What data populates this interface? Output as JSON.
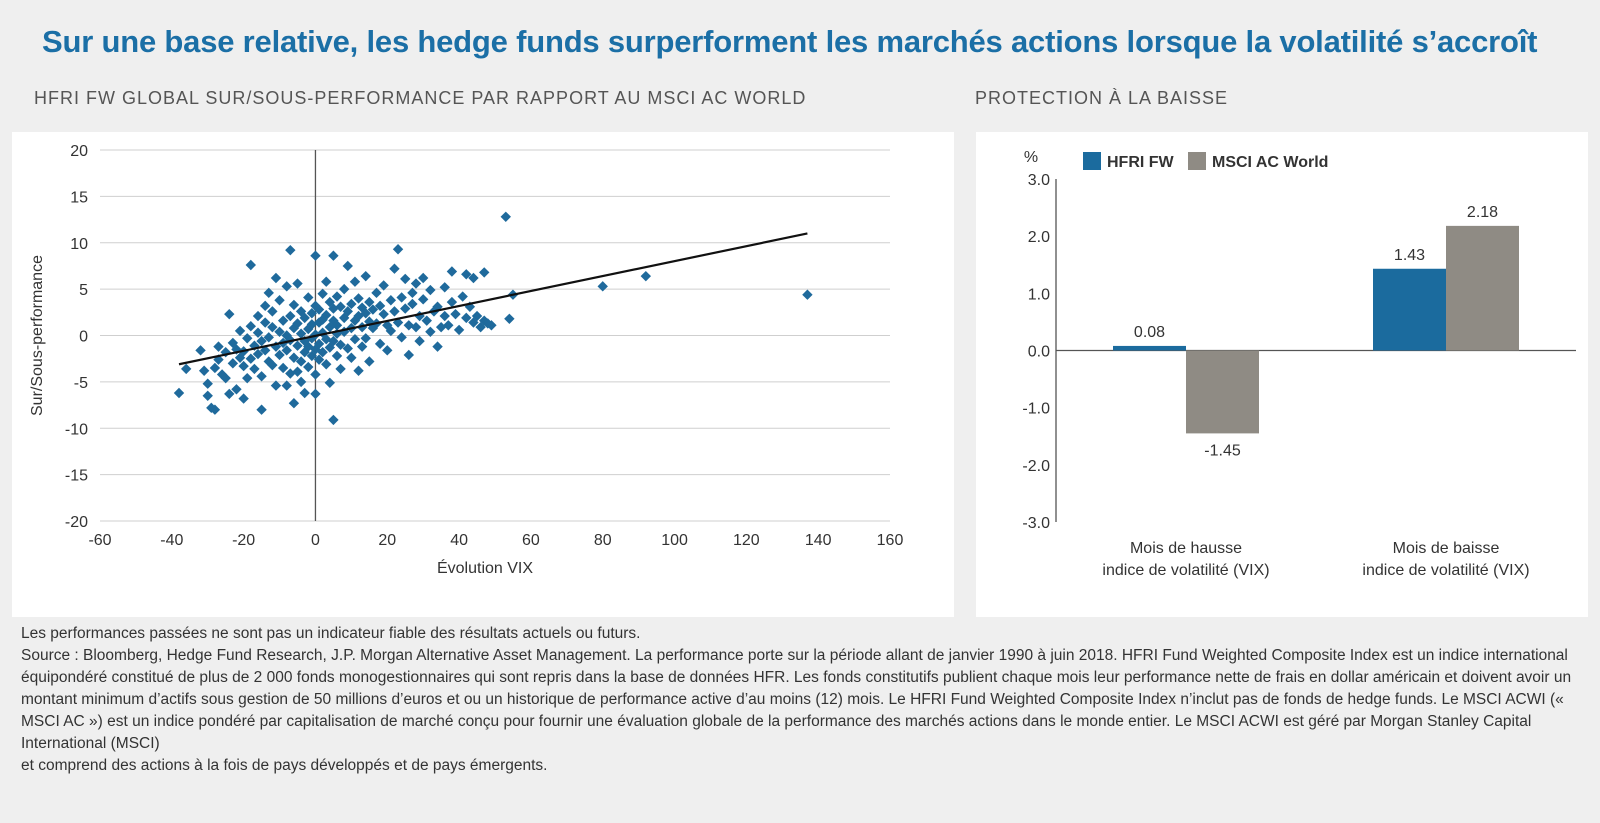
{
  "title": "Sur une base relative, les hedge funds surperforment les marchés actions lorsque la volatilité s’accroît",
  "colors": {
    "title": "#1b6fa6",
    "hfri": "#1b6b9e",
    "msci": "#8f8b84",
    "scatter": "#1f6a9c"
  },
  "chart_data": [
    {
      "type": "scatter",
      "title": "HFRI FW GLOBAL SUR/SOUS-PERFORMANCE PAR RAPPORT AU MSCI AC WORLD",
      "xlabel": "Évolution VIX",
      "ylabel": "Sur/Sous-performance",
      "xlim": [
        -60,
        160
      ],
      "ylim": [
        -20,
        20
      ],
      "xticks": [
        -60,
        -40,
        -20,
        0,
        20,
        40,
        60,
        80,
        100,
        120,
        140,
        160
      ],
      "yticks": [
        20,
        15,
        10,
        5,
        0,
        -5,
        -10,
        -15,
        -20
      ],
      "grid": true,
      "trendline": {
        "x": [
          -38,
          137
        ],
        "y": [
          -3.1,
          11
        ]
      },
      "points": [
        [
          -38,
          -6.2
        ],
        [
          -36,
          -3.6
        ],
        [
          -32,
          -1.6
        ],
        [
          -31,
          -3.8
        ],
        [
          -30,
          -5.2
        ],
        [
          -30,
          -6.5
        ],
        [
          -29,
          -7.8
        ],
        [
          -28,
          -8
        ],
        [
          -28,
          -3.5
        ],
        [
          -27,
          -2.6
        ],
        [
          -27,
          -1.2
        ],
        [
          -26,
          -4.2
        ],
        [
          -25,
          -4.6
        ],
        [
          -25,
          -1.8
        ],
        [
          -24,
          -6.3
        ],
        [
          -24,
          2.3
        ],
        [
          -23,
          -3
        ],
        [
          -23,
          -0.8
        ],
        [
          -22,
          -5.8
        ],
        [
          -22,
          -1.5
        ],
        [
          -21,
          -2.4
        ],
        [
          -21,
          0.5
        ],
        [
          -20,
          -3.3
        ],
        [
          -20,
          -1.7
        ],
        [
          -20,
          -6.8
        ],
        [
          -19,
          -0.3
        ],
        [
          -19,
          -4.6
        ],
        [
          -18,
          7.6
        ],
        [
          -18,
          -2.5
        ],
        [
          -18,
          1
        ],
        [
          -17,
          -1.1
        ],
        [
          -17,
          -3.6
        ],
        [
          -16,
          0.3
        ],
        [
          -16,
          -2
        ],
        [
          -16,
          2.1
        ],
        [
          -15,
          -4.4
        ],
        [
          -15,
          -0.6
        ],
        [
          -15,
          -8
        ],
        [
          -14,
          1.4
        ],
        [
          -14,
          -1.6
        ],
        [
          -14,
          3.2
        ],
        [
          -13,
          -2.8
        ],
        [
          -13,
          -0.2
        ],
        [
          -13,
          4.6
        ],
        [
          -12,
          0.9
        ],
        [
          -12,
          -3.2
        ],
        [
          -12,
          2.6
        ],
        [
          -11,
          -1.2
        ],
        [
          -11,
          6.2
        ],
        [
          -11,
          -5.4
        ],
        [
          -10,
          0.4
        ],
        [
          -10,
          -2.1
        ],
        [
          -10,
          3.8
        ],
        [
          -9,
          -0.8
        ],
        [
          -9,
          1.6
        ],
        [
          -9,
          -3.5
        ],
        [
          -8,
          -5.4
        ],
        [
          -8,
          5.3
        ],
        [
          -8,
          0
        ],
        [
          -8,
          -1.6
        ],
        [
          -7,
          2.1
        ],
        [
          -7,
          -4.1
        ],
        [
          -7,
          -0.5
        ],
        [
          -7,
          9.2
        ],
        [
          -6,
          0.8
        ],
        [
          -6,
          -2.4
        ],
        [
          -6,
          3.3
        ],
        [
          -6,
          -7.3
        ],
        [
          -5,
          -1.1
        ],
        [
          -5,
          1.3
        ],
        [
          -5,
          -3.9
        ],
        [
          -5,
          5.6
        ],
        [
          -4,
          0.2
        ],
        [
          -4,
          -2.8
        ],
        [
          -4,
          2.6
        ],
        [
          -4,
          -5
        ],
        [
          -3,
          -0.6
        ],
        [
          -3,
          1.9
        ],
        [
          -3,
          -1.8
        ],
        [
          -3,
          -6.2
        ],
        [
          -2,
          0.7
        ],
        [
          -2,
          -3.4
        ],
        [
          -2,
          4.1
        ],
        [
          -2,
          -1.2
        ],
        [
          -1,
          2.4
        ],
        [
          -1,
          -0.3
        ],
        [
          -1,
          -2.2
        ],
        [
          -1,
          1.2
        ],
        [
          0,
          0.1
        ],
        [
          0,
          -1.5
        ],
        [
          0,
          3.2
        ],
        [
          0,
          -4.2
        ],
        [
          0,
          -6.3
        ],
        [
          0,
          8.6
        ],
        [
          1,
          1.4
        ],
        [
          1,
          -0.9
        ],
        [
          1,
          2.8
        ],
        [
          1,
          -2.6
        ],
        [
          2,
          0.3
        ],
        [
          2,
          -1.8
        ],
        [
          2,
          4.5
        ],
        [
          2,
          1.7
        ],
        [
          3,
          -0.4
        ],
        [
          3,
          2.2
        ],
        [
          3,
          -3.1
        ],
        [
          3,
          5.8
        ],
        [
          4,
          0.9
        ],
        [
          4,
          -1.3
        ],
        [
          4,
          3.6
        ],
        [
          4,
          -5.1
        ],
        [
          5,
          1.6
        ],
        [
          5,
          -0.6
        ],
        [
          5,
          2.9
        ],
        [
          5,
          -9.1
        ],
        [
          5,
          8.6
        ],
        [
          6,
          0.2
        ],
        [
          6,
          -2.2
        ],
        [
          6,
          4.2
        ],
        [
          6,
          1.1
        ],
        [
          7,
          -1
        ],
        [
          7,
          3.1
        ],
        [
          7,
          -3.6
        ],
        [
          8,
          1.9
        ],
        [
          8,
          0.4
        ],
        [
          8,
          5
        ],
        [
          9,
          -1.4
        ],
        [
          9,
          2.6
        ],
        [
          9,
          7.5
        ],
        [
          10,
          0.8
        ],
        [
          10,
          3.4
        ],
        [
          10,
          -2.4
        ],
        [
          11,
          1.6
        ],
        [
          11,
          5.8
        ],
        [
          11,
          -0.4
        ],
        [
          12,
          2.1
        ],
        [
          12,
          -3.8
        ],
        [
          12,
          4
        ],
        [
          13,
          0.9
        ],
        [
          13,
          3
        ],
        [
          13,
          -1.2
        ],
        [
          14,
          2.4
        ],
        [
          14,
          6.4
        ],
        [
          14,
          -0.3
        ],
        [
          15,
          1.5
        ],
        [
          15,
          3.6
        ],
        [
          15,
          -2.8
        ],
        [
          16,
          2.8
        ],
        [
          16,
          0.8
        ],
        [
          17,
          4.6
        ],
        [
          17,
          1.3
        ],
        [
          18,
          -0.9
        ],
        [
          18,
          3.2
        ],
        [
          19,
          2.3
        ],
        [
          19,
          5.4
        ],
        [
          20,
          1.1
        ],
        [
          20,
          -1.6
        ],
        [
          21,
          3.8
        ],
        [
          21,
          0.5
        ],
        [
          22,
          2.6
        ],
        [
          22,
          7.2
        ],
        [
          23,
          1.4
        ],
        [
          23,
          9.3
        ],
        [
          24,
          4.1
        ],
        [
          24,
          -0.2
        ],
        [
          25,
          2.9
        ],
        [
          25,
          6.1
        ],
        [
          26,
          1.1
        ],
        [
          26,
          -2.1
        ],
        [
          27,
          3.4
        ],
        [
          27,
          4.6
        ],
        [
          28,
          0.9
        ],
        [
          28,
          5.6
        ],
        [
          29,
          2.1
        ],
        [
          29,
          -0.6
        ],
        [
          30,
          3.9
        ],
        [
          30,
          6.2
        ],
        [
          31,
          1.6
        ],
        [
          32,
          0.4
        ],
        [
          32,
          4.9
        ],
        [
          33,
          2.6
        ],
        [
          34,
          -1.2
        ],
        [
          34,
          3.1
        ],
        [
          35,
          0.9
        ],
        [
          36,
          5.2
        ],
        [
          36,
          2.1
        ],
        [
          37,
          1.1
        ],
        [
          38,
          3.6
        ],
        [
          38,
          6.9
        ],
        [
          39,
          2.3
        ],
        [
          40,
          0.6
        ],
        [
          41,
          4.2
        ],
        [
          42,
          1.9
        ],
        [
          42,
          6.6
        ],
        [
          43,
          3.1
        ],
        [
          44,
          1.4
        ],
        [
          44,
          6.2
        ],
        [
          45,
          2.1
        ],
        [
          46,
          0.9
        ],
        [
          47,
          1.6
        ],
        [
          47,
          6.8
        ],
        [
          48,
          1.3
        ],
        [
          49,
          1.1
        ],
        [
          53,
          12.8
        ],
        [
          54,
          1.8
        ],
        [
          55,
          4.4
        ],
        [
          80,
          5.3
        ],
        [
          92,
          6.4
        ],
        [
          137,
          4.4
        ]
      ]
    },
    {
      "type": "bar",
      "title": "PROTECTION À LA BAISSE",
      "ylabel": "%",
      "categories": [
        "Mois de hausse indice de volatilité (VIX)",
        "Mois de baisse indice de volatilité (VIX)"
      ],
      "category_lines": [
        [
          "Mois de hausse",
          "indice de volatilité (VIX)"
        ],
        [
          "Mois de baisse",
          "indice de volatilité (VIX)"
        ]
      ],
      "series": [
        {
          "name": "HFRI FW",
          "values": [
            0.08,
            1.43
          ]
        },
        {
          "name": "MSCI AC World",
          "values": [
            -1.45,
            2.18
          ]
        }
      ],
      "value_labels": [
        [
          "0.08",
          "1.43"
        ],
        [
          "-1.45",
          "2.18"
        ]
      ],
      "ylim": [
        -3,
        3
      ],
      "yticks": [
        "3.0",
        "2.0",
        "1.0",
        "0.0",
        "-1.0",
        "-2.0",
        "-3.0"
      ],
      "legend": "top"
    }
  ],
  "footnote": {
    "line1": "Les performances passées ne sont pas un indicateur fiable des résultats actuels ou futurs.",
    "body": "Source : Bloomberg, Hedge Fund Research, J.P. Morgan Alternative Asset Management. La performance porte sur la période allant de janvier 1990 à juin 2018. HFRI Fund Weighted Composite Index est un indice international équipondéré constitué de plus de 2 000 fonds monogestionnaires qui sont repris dans la base de données HFR. Les fonds constitutifs publient chaque mois leur performance nette de frais en dollar américain et doivent avoir un montant minimum d’actifs sous gestion de 50 millions d’euros et ou un historique de performance active d’au moins (12) mois. Le HFRI Fund Weighted Composite Index n’inclut pas de fonds de hedge funds. Le MSCI ACWI (« MSCI AC ») est un indice pondéré par capitalisation de marché conçu pour fournir une évaluation globale de la performance des marchés actions dans le monde entier. Le MSCI ACWI est géré par Morgan Stanley Capital International (MSCI)",
    "last": "et comprend des actions à la fois de pays développés et de pays émergents."
  }
}
